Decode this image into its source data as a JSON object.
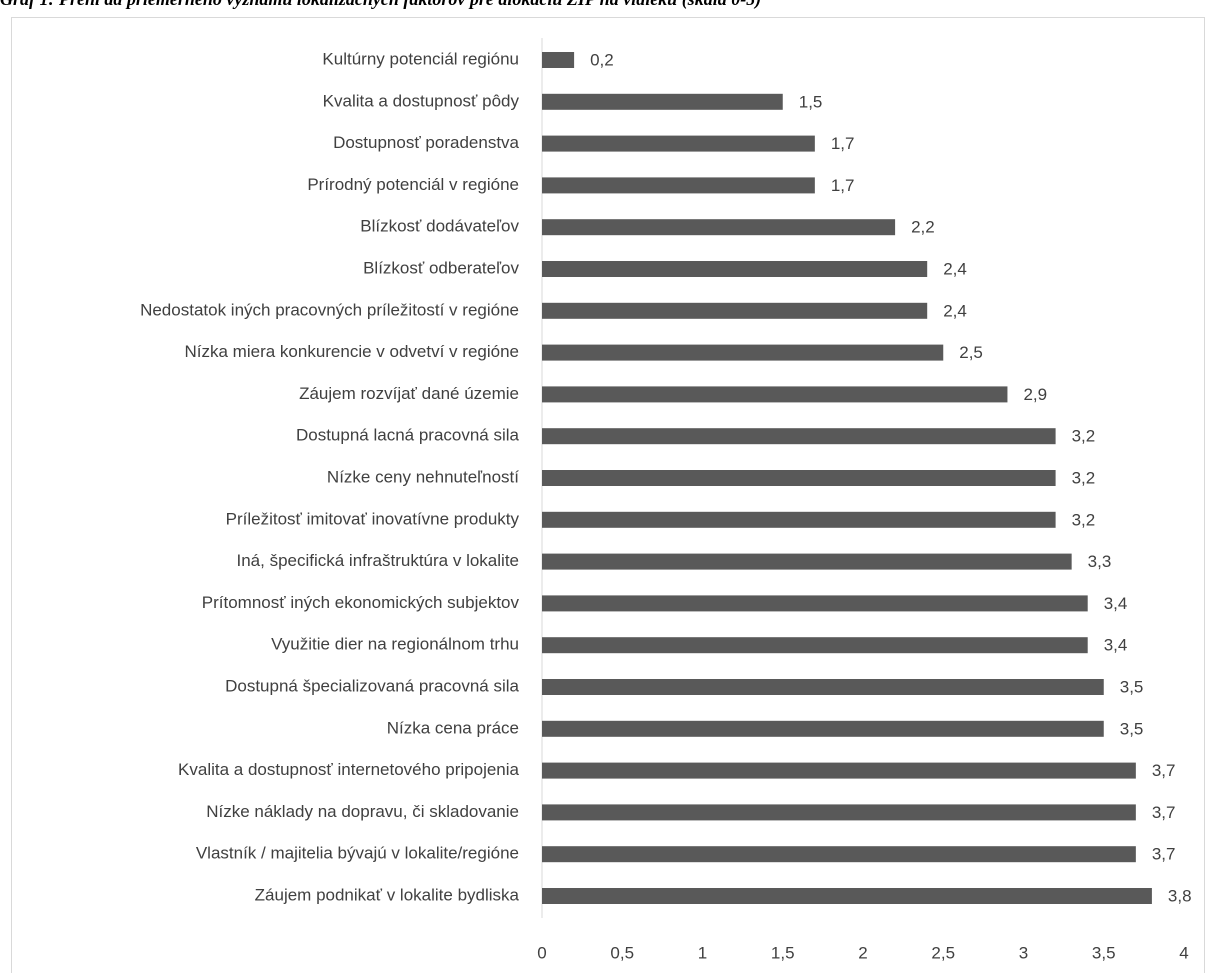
{
  "caption": "Graf 1: Prehľad priemerného významu lokalizačných faktorov pre alokáciu ZIP na vidieku (škála 0-5)",
  "colors": {
    "bar": "#595959",
    "axis": "#d9d9d9",
    "text": "#404040"
  },
  "chart_data": {
    "type": "bar",
    "orientation": "horizontal",
    "title": "",
    "xlabel": "",
    "ylabel": "",
    "xlim": [
      0,
      4
    ],
    "x_ticks": [
      "0",
      "0,5",
      "1",
      "1,5",
      "2",
      "2,5",
      "3",
      "3,5",
      "4"
    ],
    "grid": false,
    "legend": "none",
    "categories": [
      "Kultúrny potenciál regiónu",
      "Kvalita a dostupnosť pôdy",
      "Dostupnosť poradenstva",
      "Prírodný potenciál v regióne",
      "Blízkosť dodávateľov",
      "Blízkosť odberateľov",
      "Nedostatok iných pracovných príležitostí v regióne",
      "Nízka miera konkurencie v odvetví v regióne",
      "Záujem rozvíjať dané územie",
      "Dostupná lacná pracovná sila",
      "Nízke ceny nehnuteľností",
      "Príležitosť imitovať inovatívne produkty",
      "Iná, špecifická infraštruktúra v lokalite",
      "Prítomnosť iných ekonomických subjektov",
      "Využitie dier na regionálnom trhu",
      "Dostupná špecializovaná pracovná sila",
      "Nízka cena práce",
      "Kvalita a dostupnosť internetového pripojenia",
      "Nízke náklady na dopravu, či skladovanie",
      "Vlastník / majitelia bývajú v lokalite/regióne",
      "Záujem podnikať v lokalite bydliska"
    ],
    "values": [
      0.2,
      1.5,
      1.7,
      1.7,
      2.2,
      2.4,
      2.4,
      2.5,
      2.9,
      3.2,
      3.2,
      3.2,
      3.3,
      3.4,
      3.4,
      3.5,
      3.5,
      3.7,
      3.7,
      3.7,
      3.8
    ],
    "value_labels": [
      "0,2",
      "1,5",
      "1,7",
      "1,7",
      "2,2",
      "2,4",
      "2,4",
      "2,5",
      "2,9",
      "3,2",
      "3,2",
      "3,2",
      "3,3",
      "3,4",
      "3,4",
      "3,5",
      "3,5",
      "3,7",
      "3,7",
      "3,7",
      "3,8"
    ]
  }
}
